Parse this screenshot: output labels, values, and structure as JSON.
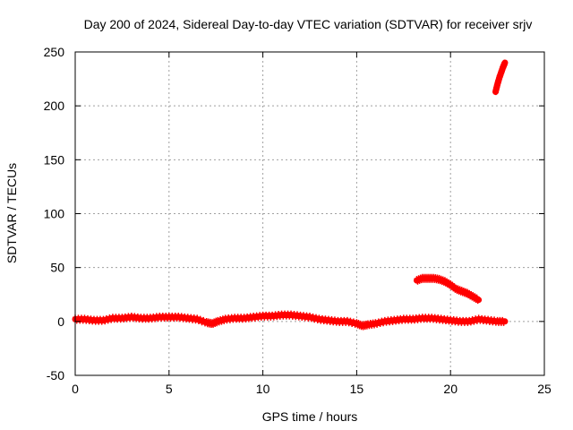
{
  "chart_data": {
    "type": "scatter",
    "title": "Day 200 of 2024, Sidereal Day-to-day VTEC variation (SDTVAR) for receiver srjv",
    "xlabel": "GPS time / hours",
    "ylabel": "SDTVAR / TECUs",
    "xlim": [
      0,
      25
    ],
    "ylim": [
      -50,
      250
    ],
    "xticks": [
      0,
      5,
      10,
      15,
      20,
      25
    ],
    "yticks": [
      -50,
      0,
      50,
      100,
      150,
      200,
      250
    ],
    "grid": true,
    "marker_color": "#ff0000",
    "series": [
      {
        "name": "main",
        "x": [
          0.0,
          0.5,
          1.0,
          1.5,
          2.0,
          2.5,
          3.0,
          3.5,
          4.0,
          4.5,
          5.0,
          5.5,
          6.0,
          6.5,
          7.0,
          7.3,
          7.6,
          8.0,
          8.5,
          9.0,
          9.5,
          10.0,
          10.5,
          11.0,
          11.5,
          12.0,
          12.5,
          13.0,
          13.5,
          14.0,
          14.5,
          15.0,
          15.3,
          15.6,
          16.0,
          16.5,
          17.0,
          17.5,
          18.0,
          18.5,
          19.0,
          19.5,
          20.0,
          20.5,
          21.0,
          21.5,
          22.0,
          22.5,
          22.9
        ],
        "y": [
          2,
          2,
          1,
          1,
          3,
          3,
          4,
          3,
          3,
          4,
          4,
          4,
          3,
          2,
          -1,
          -2,
          0,
          2,
          3,
          3,
          4,
          5,
          5,
          6,
          6,
          5,
          4,
          2,
          1,
          0,
          0,
          -2,
          -4,
          -3,
          -2,
          0,
          1,
          2,
          2,
          3,
          3,
          2,
          1,
          0,
          0,
          2,
          1,
          0,
          0
        ]
      },
      {
        "name": "arc-segment",
        "x": [
          18.2,
          18.5,
          18.8,
          19.1,
          19.4,
          19.7,
          20.0,
          20.3,
          20.6,
          20.9,
          21.2,
          21.5
        ],
        "y": [
          38,
          40,
          40,
          40,
          39,
          37,
          34,
          30,
          28,
          26,
          23,
          20
        ]
      },
      {
        "name": "steep-segment",
        "x": [
          22.4,
          22.5,
          22.6,
          22.7,
          22.8,
          22.9
        ],
        "y": [
          213,
          220,
          226,
          231,
          236,
          240
        ]
      }
    ]
  }
}
